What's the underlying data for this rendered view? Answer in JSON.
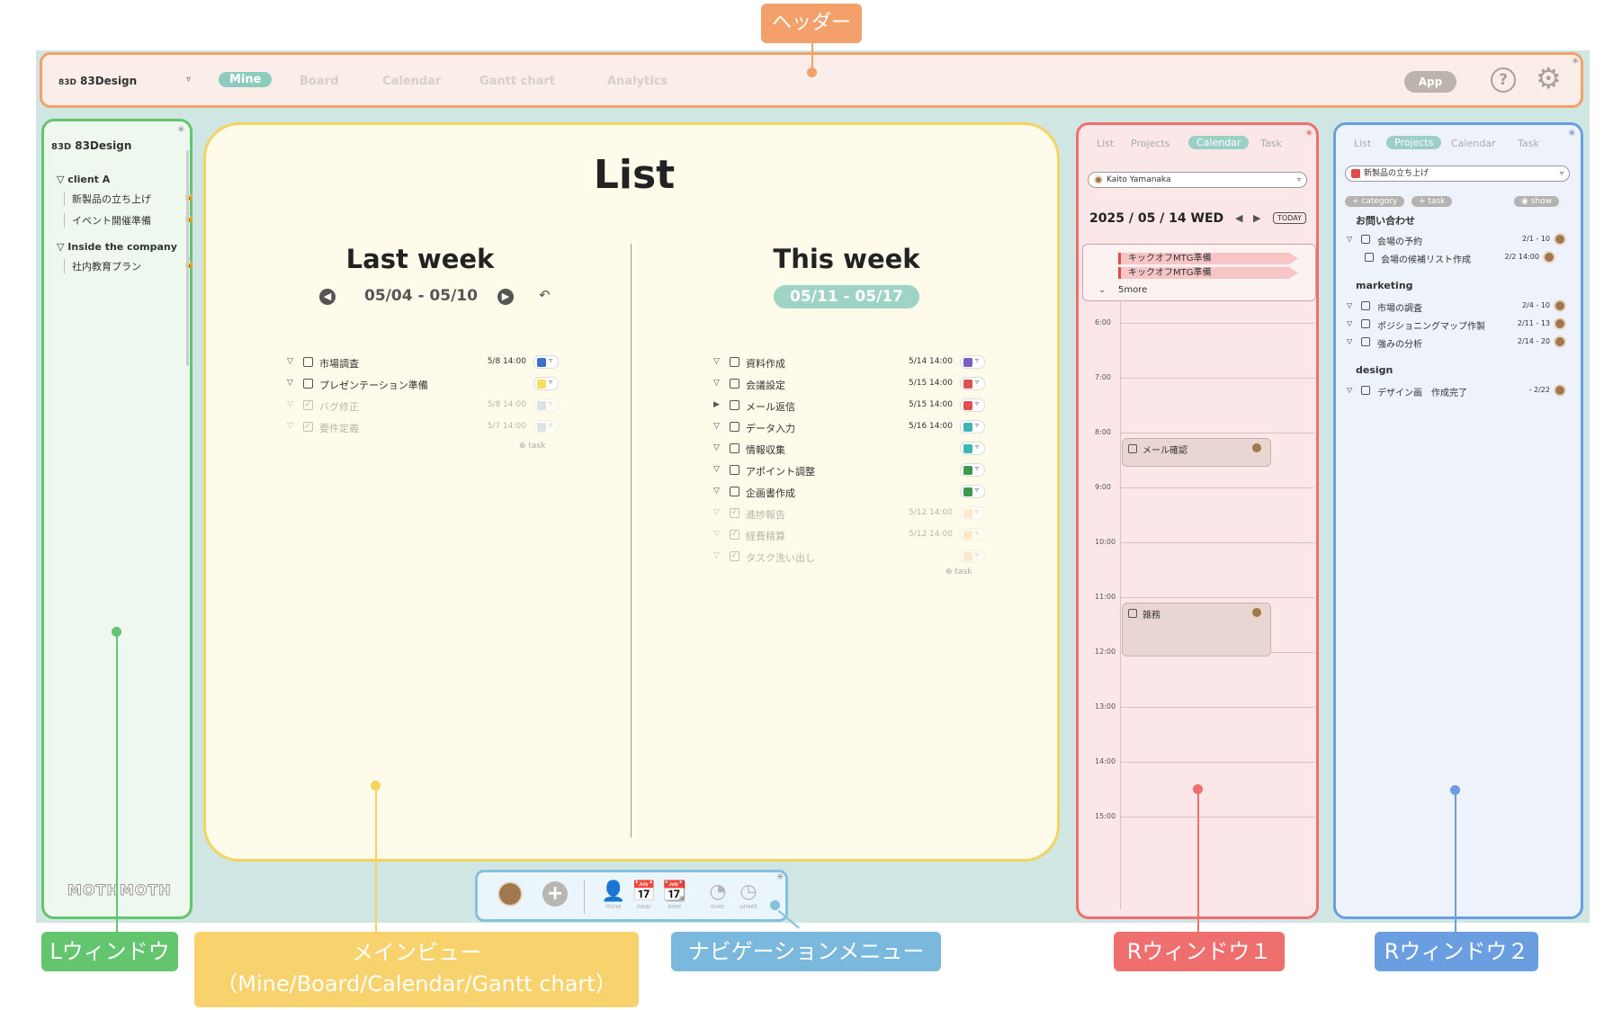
{
  "annotations": {
    "header": "ヘッダー",
    "lwindow": "Lウィンドウ",
    "mainview_line1": "メインビュー",
    "mainview_line2": "（Mine/Board/Calendar/Gantt chart）",
    "navmenu": "ナビゲーションメニュー",
    "rwindow1": "Rウィンドウ１",
    "rwindow2": "Rウィンドウ２"
  },
  "header": {
    "workspace": "83Design",
    "logo_mark": "83D",
    "tabs": [
      "Mine",
      "Board",
      "Calendar",
      "Gantt chart",
      "Analytics"
    ],
    "active_tab": "Mine",
    "app_button": "App",
    "help_glyph": "?",
    "gear_glyph": "⚙"
  },
  "lwindow": {
    "logo_mark": "83D",
    "title": "83Design",
    "groups": [
      {
        "name": "client A",
        "items": [
          {
            "label": "新製品の立ち上げ",
            "locked": true
          },
          {
            "label": "イベント開催準備",
            "locked": true
          }
        ]
      },
      {
        "name": "Inside the company",
        "items": [
          {
            "label": "社内教育プラン",
            "locked": true
          }
        ]
      }
    ],
    "footer_logo": "MOTHMOTH"
  },
  "main": {
    "title": "List",
    "last_week": {
      "title": "Last week",
      "range": "05/04 - 05/10",
      "tasks": [
        {
          "name": "市場調査",
          "date": "5/8 14:00",
          "color": "#3f6fc9",
          "done": false,
          "arrow": "▽"
        },
        {
          "name": "プレゼンテーション準備",
          "date": "",
          "color": "#f1e160",
          "done": false,
          "arrow": "▽"
        },
        {
          "name": "バグ修正",
          "date": "5/8 14:00",
          "color": "#9bb8e6",
          "done": true,
          "arrow": "▽"
        },
        {
          "name": "要件定義",
          "date": "5/7 14:00",
          "color": "#9bb8e6",
          "done": true,
          "arrow": "▽"
        }
      ],
      "add_label": "task"
    },
    "this_week": {
      "title": "This week",
      "range": "05/11 - 05/17",
      "tasks": [
        {
          "name": "資料作成",
          "date": "5/14 14:00",
          "color": "#7a5fc9",
          "done": false,
          "arrow": "▽"
        },
        {
          "name": "会議設定",
          "date": "5/15 14:00",
          "color": "#e05252",
          "done": false,
          "arrow": "▽"
        },
        {
          "name": "メール返信",
          "date": "5/15 14:00",
          "color": "#e05252",
          "done": false,
          "arrow": "▶"
        },
        {
          "name": "データ入力",
          "date": "5/16 14:00",
          "color": "#3fb5b5",
          "done": false,
          "arrow": "▽"
        },
        {
          "name": "情報収集",
          "date": "",
          "color": "#3fb5b5",
          "done": false,
          "arrow": "▽"
        },
        {
          "name": "アポイント調整",
          "date": "",
          "color": "#3b9a4e",
          "done": false,
          "arrow": "▽"
        },
        {
          "name": "企画書作成",
          "date": "",
          "color": "#3b9a4e",
          "done": false,
          "arrow": "▽"
        },
        {
          "name": "進捗報告",
          "date": "5/12 14:00",
          "color": "#f4c89a",
          "done": true,
          "arrow": "▽"
        },
        {
          "name": "経費精算",
          "date": "5/12 14:00",
          "color": "#f4c89a",
          "done": true,
          "arrow": "▽"
        },
        {
          "name": "タスク洗い出し",
          "date": "",
          "color": "#f4c89a",
          "done": true,
          "arrow": "▽"
        }
      ],
      "add_label": "task"
    }
  },
  "nav": {
    "items": [
      {
        "label": "mine",
        "icon": "person-icon",
        "glyph": "👤"
      },
      {
        "label": "near",
        "icon": "calendar-near-icon",
        "glyph": "📅"
      },
      {
        "label": "over",
        "icon": "calendar-over-icon",
        "glyph": "📆"
      },
      {
        "label": "over",
        "icon": "clock-over-icon",
        "glyph": "◔"
      },
      {
        "label": "unset",
        "icon": "clock-unset-icon",
        "glyph": "◷"
      }
    ],
    "add_glyph": "+"
  },
  "rwindow1": {
    "tabs": [
      "List",
      "Projects",
      "Calendar",
      "Task"
    ],
    "active_tab": "Calendar",
    "user": "Kaito Yamanaka",
    "date": "2025 / 05 / 14 WED",
    "today_button": "TODAY",
    "allday_events": [
      "キックオフMTG準備",
      "キックオフMTG準備"
    ],
    "more": "5more",
    "hours": [
      "6:00",
      "7:00",
      "8:00",
      "9:00",
      "10:00",
      "11:00",
      "12:00",
      "13:00",
      "14:00",
      "15:00"
    ],
    "events": [
      {
        "name": "メール確認",
        "start": "8:00"
      },
      {
        "name": "雑務",
        "start": "11:00"
      }
    ]
  },
  "rwindow2": {
    "tabs": [
      "List",
      "Projects",
      "Calendar",
      "Task"
    ],
    "active_tab": "Projects",
    "project": "新製品の立ち上げ",
    "chip_category": "+ category",
    "chip_task": "+ task",
    "chip_show": "show",
    "categories": [
      {
        "name": "お問い合わせ",
        "tasks": [
          {
            "name": "会場の予約",
            "date": "2/1 - 10",
            "arrow": "▽",
            "sub": false
          },
          {
            "name": "会場の候補リスト作成",
            "date": "2/2 14:00",
            "arrow": "",
            "sub": true
          }
        ]
      },
      {
        "name": "marketing",
        "tasks": [
          {
            "name": "市場の調査",
            "date": "2/4 - 10",
            "arrow": "▽",
            "sub": false
          },
          {
            "name": "ポジショニングマップ作製",
            "date": "2/11 - 13",
            "arrow": "▽",
            "sub": false
          },
          {
            "name": "強みの分析",
            "date": "2/14 - 20",
            "arrow": "▽",
            "sub": false
          }
        ]
      },
      {
        "name": "design",
        "tasks": [
          {
            "name": "デザイン画　作成完了",
            "date": "- 2/22",
            "arrow": "▽",
            "sub": false
          }
        ]
      }
    ]
  },
  "colors": {
    "header_border": "#f3a06a",
    "lwindow_border": "#63c56e",
    "main_border": "#f4d35e",
    "nav_border": "#86c1e0",
    "r1_border": "#ef6f6f",
    "r2_border": "#6a9ee0",
    "accent": "#8ccbbd"
  }
}
